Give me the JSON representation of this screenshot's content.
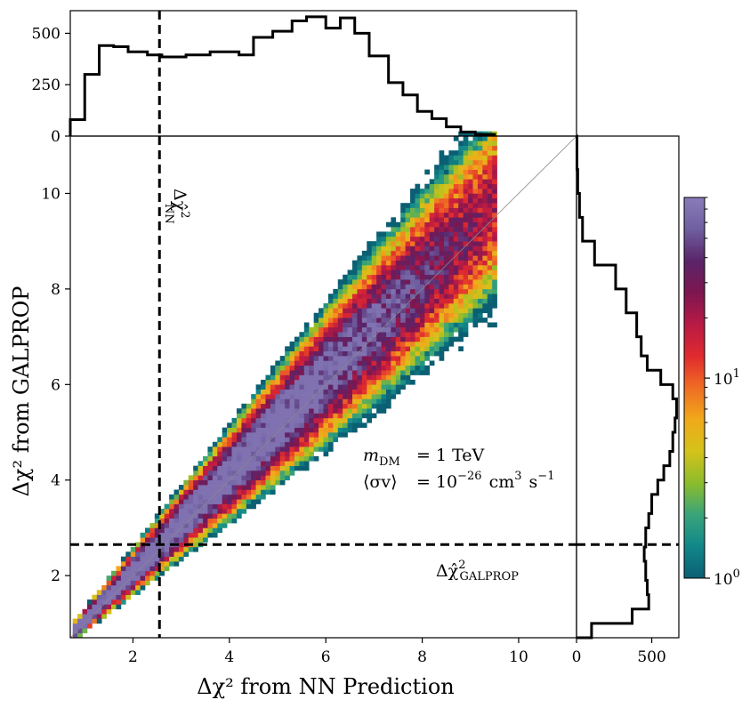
{
  "chart_data": {
    "type": "heatmap",
    "title": "",
    "xlabel": "Δχ² from NN Prediction",
    "ylabel": "Δχ² from GALPROP",
    "x_range": [
      0.7,
      11.2
    ],
    "y_range": [
      0.7,
      11.2
    ],
    "x_ticks": [
      2,
      4,
      6,
      8,
      10
    ],
    "y_ticks": [
      2,
      4,
      6,
      8,
      10
    ],
    "x_tick_labels": [
      "2",
      "4",
      "6",
      "8",
      "10"
    ],
    "y_tick_labels": [
      "2",
      "4",
      "6",
      "8",
      "10"
    ],
    "thresholds": {
      "nn": 2.55,
      "galprop": 2.65,
      "nn_label_main": "Δχ̂",
      "nn_label_sup": "2",
      "nn_label_sub": "NN",
      "galprop_label_main": "Δχ̂",
      "galprop_label_sup": "2",
      "galprop_label_sub": "GALPROP"
    },
    "annotation": {
      "mass_symbol": "m",
      "mass_sub": "DM",
      "mass_value": "= 1 TeV",
      "xsec_symbol": "⟨σv⟩",
      "xsec_prefix": "= 10",
      "xsec_exp": "−26",
      "xsec_unit1": "cm",
      "xsec_unit1_exp": "3",
      "xsec_unit2": "s",
      "xsec_unit2_exp": "−1"
    },
    "density_model": {
      "description": "2D histogram of counts, concentrated along diagonal y ≈ x with spread increasing with x",
      "x_min": 0.75,
      "x_max": 9.5,
      "bin_width": 0.1,
      "max_count": 70
    },
    "top_histogram": {
      "ylabel": "",
      "y_ticks": [
        0,
        250,
        500
      ],
      "y_tick_labels": [
        "0",
        "250",
        "500"
      ],
      "y_range": [
        0,
        610
      ],
      "bin_edges": [
        0.7,
        1.0,
        1.3,
        1.6,
        1.9,
        2.3,
        2.6,
        3.1,
        3.6,
        4.2,
        4.5,
        4.9,
        5.3,
        5.6,
        6.0,
        6.3,
        6.6,
        6.9,
        7.3,
        7.6,
        7.9,
        8.2,
        8.5,
        8.8,
        9.1,
        9.5
      ],
      "counts": [
        80,
        300,
        440,
        435,
        410,
        395,
        385,
        395,
        410,
        395,
        480,
        510,
        560,
        580,
        525,
        575,
        500,
        390,
        260,
        200,
        120,
        85,
        45,
        20,
        8
      ]
    },
    "right_histogram": {
      "x_ticks": [
        0,
        500
      ],
      "x_tick_labels": [
        "0",
        "500"
      ],
      "x_range": [
        0,
        680
      ],
      "bin_edges": [
        0.7,
        1.0,
        1.3,
        1.6,
        1.9,
        2.3,
        2.6,
        3.0,
        3.3,
        3.7,
        4.0,
        4.3,
        4.6,
        5.0,
        5.3,
        5.7,
        6.0,
        6.3,
        6.6,
        7.0,
        7.5,
        8.0,
        8.5,
        9.0,
        9.5,
        10.0,
        10.5,
        11.2
      ],
      "counts": [
        100,
        370,
        480,
        470,
        460,
        450,
        460,
        480,
        500,
        540,
        580,
        620,
        640,
        655,
        665,
        640,
        560,
        470,
        430,
        400,
        330,
        260,
        120,
        40,
        20,
        8,
        3
      ]
    },
    "colorbar": {
      "scale": "log",
      "range": [
        1,
        80
      ],
      "ticks": [
        1,
        10
      ],
      "tick_base": "10",
      "tick_exps": [
        "0",
        "1"
      ],
      "colors": [
        "#0b5f72",
        "#11878a",
        "#3aa47a",
        "#8cbc2c",
        "#d4c21a",
        "#f0a91a",
        "#ef6d24",
        "#e02a2d",
        "#b81a45",
        "#7d1650",
        "#5a2469",
        "#6f5fa0",
        "#8a7cbb"
      ]
    }
  }
}
